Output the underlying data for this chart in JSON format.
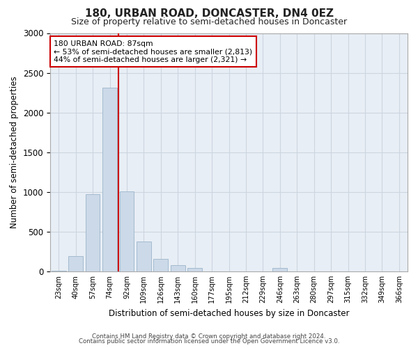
{
  "title": "180, URBAN ROAD, DONCASTER, DN4 0EZ",
  "subtitle": "Size of property relative to semi-detached houses in Doncaster",
  "xlabel": "Distribution of semi-detached houses by size in Doncaster",
  "ylabel": "Number of semi-detached properties",
  "categories": [
    "23sqm",
    "40sqm",
    "57sqm",
    "74sqm",
    "92sqm",
    "109sqm",
    "126sqm",
    "143sqm",
    "160sqm",
    "177sqm",
    "195sqm",
    "212sqm",
    "229sqm",
    "246sqm",
    "263sqm",
    "280sqm",
    "297sqm",
    "315sqm",
    "332sqm",
    "349sqm",
    "366sqm"
  ],
  "values": [
    10,
    195,
    970,
    2310,
    1010,
    375,
    155,
    75,
    40,
    0,
    0,
    0,
    0,
    40,
    0,
    0,
    0,
    0,
    0,
    0,
    0
  ],
  "bar_color": "#ccd9e8",
  "bar_edge_color": "#9ab5cc",
  "pct_smaller": 53,
  "pct_smaller_n": 2813,
  "pct_larger": 44,
  "pct_larger_n": 2321,
  "property_label": "180 URBAN ROAD: 87sqm",
  "vline_x": 3.5,
  "vline_color": "#cc0000",
  "annotation_box_facecolor": "#ffffff",
  "annotation_box_edgecolor": "#cc0000",
  "ylim": [
    0,
    3000
  ],
  "yticks": [
    0,
    500,
    1000,
    1500,
    2000,
    2500,
    3000
  ],
  "grid_color": "#ccd5e0",
  "background_color": "#e8eef5",
  "title_fontsize": 11,
  "subtitle_fontsize": 9,
  "footer1": "Contains HM Land Registry data © Crown copyright and database right 2024.",
  "footer2": "Contains public sector information licensed under the Open Government Licence v3.0."
}
